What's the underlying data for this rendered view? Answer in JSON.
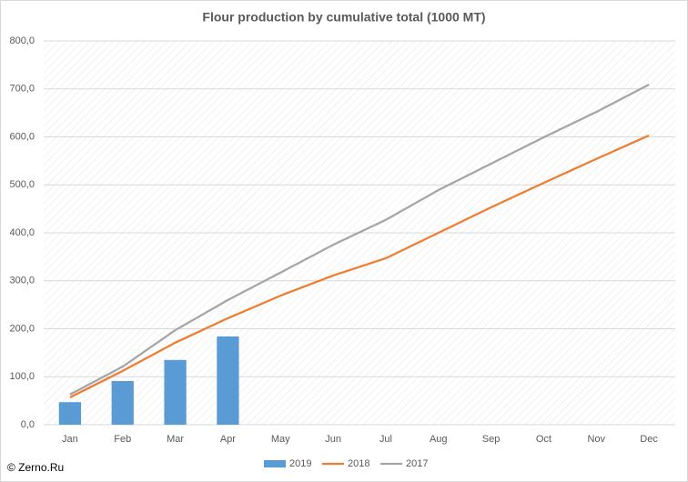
{
  "chart_data": {
    "type": "combo",
    "title": "Flour production by cumulative total (1000 MT)",
    "source": "© Zerno.Ru",
    "categories": [
      "Jan",
      "Feb",
      "Mar",
      "Apr",
      "May",
      "Jun",
      "Jul",
      "Aug",
      "Sep",
      "Oct",
      "Nov",
      "Dec"
    ],
    "series": [
      {
        "name": "2019",
        "type": "bar",
        "color": "#5b9bd5",
        "values": [
          47,
          91,
          135,
          184,
          null,
          null,
          null,
          null,
          null,
          null,
          null,
          null
        ]
      },
      {
        "name": "2018",
        "type": "line",
        "color": "#ed7d31",
        "values": [
          57,
          112,
          171,
          222,
          269,
          311,
          347,
          400,
          453,
          504,
          554,
          603
        ]
      },
      {
        "name": "2017",
        "type": "line",
        "color": "#a5a5a5",
        "values": [
          63,
          121,
          197,
          260,
          317,
          375,
          427,
          489,
          544,
          599,
          652,
          709
        ]
      }
    ],
    "ylim": [
      0,
      800
    ],
    "yticks": [
      {
        "value": 0,
        "label": "0,0"
      },
      {
        "value": 100,
        "label": "100,0"
      },
      {
        "value": 200,
        "label": "200,0"
      },
      {
        "value": 300,
        "label": "300,0"
      },
      {
        "value": 400,
        "label": "400,0"
      },
      {
        "value": 500,
        "label": "500,0"
      },
      {
        "value": 600,
        "label": "600,0"
      },
      {
        "value": 700,
        "label": "700,0"
      },
      {
        "value": 800,
        "label": "800,0"
      }
    ],
    "grid": true,
    "legend": "bottom"
  }
}
